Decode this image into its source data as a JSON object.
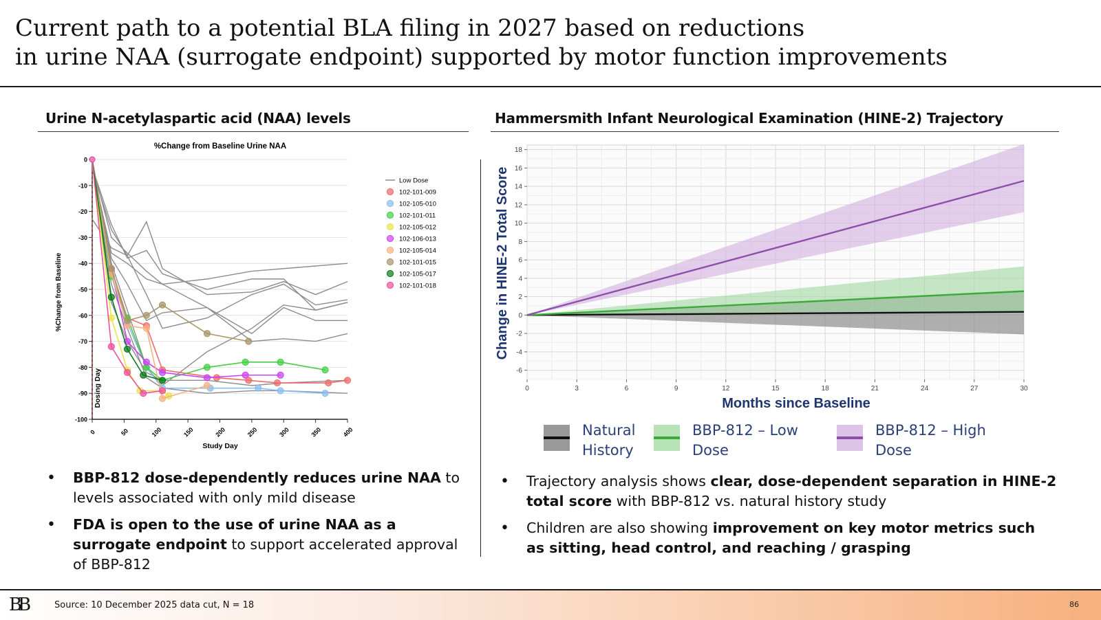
{
  "title": {
    "line1": "Current path to a potential BLA filing in 2027 based on reductions",
    "line2": "in urine NAA (surrogate endpoint) supported by motor function improvements"
  },
  "left": {
    "heading": "Urine N-acetylaspartic acid (NAA) levels",
    "bullets": [
      {
        "bold": "BBP-812 dose-dependently reduces urine NAA",
        "rest": " to levels associated with only mild disease"
      },
      {
        "bold": "FDA is open to the use of urine NAA as a surrogate endpoint",
        "rest": " to support accelerated approval of BBP-812"
      }
    ]
  },
  "right": {
    "heading": "Hammersmith Infant Neurological Examination (HINE-2) Trajectory",
    "bullets": [
      {
        "pre": "Trajectory analysis shows ",
        "bold": "clear, dose-dependent separation in HINE-2 total score",
        "rest": " with BBP-812 vs. natural history study"
      },
      {
        "pre": "Children are also showing ",
        "bold": "improvement on key motor metrics such as sitting, head control, and reaching / grasping",
        "rest": ""
      }
    ]
  },
  "footer": {
    "logo": "BB",
    "source": "Source: 10 December 2025 data cut, N = 18",
    "page": "86"
  },
  "chart_data": [
    {
      "type": "line",
      "title": "%Change from Baseline Urine NAA",
      "xlabel": "Study Day",
      "ylabel": "%Change from Baseline",
      "xlim": [
        0,
        400
      ],
      "ylim": [
        -100,
        0
      ],
      "xticks": [
        0,
        50,
        100,
        150,
        200,
        250,
        300,
        350,
        400
      ],
      "yticks": [
        0,
        -10,
        -20,
        -30,
        -40,
        -50,
        -60,
        -70,
        -80,
        -90,
        -100
      ],
      "annotation": "Dosing Day",
      "grid": "horizontal",
      "legend_position": "top-right",
      "low_dose_label": "Low Dose",
      "low_dose_color": "#8c8c8c",
      "low_dose_lines": [
        [
          [
            0,
            -23
          ],
          [
            30,
            -34
          ],
          [
            55,
            -37
          ],
          [
            85,
            -52
          ],
          [
            110,
            -65
          ],
          [
            180,
            -61
          ],
          [
            250,
            -52
          ],
          [
            300,
            -48
          ],
          [
            350,
            -56
          ],
          [
            400,
            -54
          ]
        ],
        [
          [
            0,
            -2
          ],
          [
            30,
            -30
          ],
          [
            55,
            -36
          ],
          [
            85,
            -43
          ],
          [
            110,
            -48
          ],
          [
            180,
            -46
          ],
          [
            250,
            -43
          ],
          [
            300,
            -42
          ],
          [
            400,
            -40
          ]
        ],
        [
          [
            0,
            -4
          ],
          [
            30,
            -27
          ],
          [
            55,
            -37
          ],
          [
            85,
            -24
          ],
          [
            110,
            -42
          ],
          [
            180,
            -52
          ],
          [
            250,
            -51
          ],
          [
            300,
            -47
          ],
          [
            350,
            -52
          ],
          [
            400,
            -47
          ]
        ],
        [
          [
            0,
            -3
          ],
          [
            30,
            -25
          ],
          [
            55,
            -38
          ],
          [
            85,
            -35
          ],
          [
            110,
            -44
          ],
          [
            180,
            -50
          ],
          [
            250,
            -46
          ],
          [
            300,
            -46
          ],
          [
            350,
            -58
          ],
          [
            400,
            -55
          ]
        ],
        [
          [
            0,
            -3
          ],
          [
            30,
            -38
          ],
          [
            55,
            -48
          ],
          [
            85,
            -62
          ],
          [
            110,
            -59
          ],
          [
            180,
            -57
          ],
          [
            250,
            -67
          ],
          [
            300,
            -57
          ],
          [
            350,
            -62
          ],
          [
            400,
            -62
          ]
        ],
        [
          [
            0,
            -3
          ],
          [
            30,
            -36
          ],
          [
            55,
            -40
          ],
          [
            85,
            -46
          ],
          [
            110,
            -48
          ],
          [
            180,
            -57
          ],
          [
            250,
            -70
          ],
          [
            300,
            -69
          ],
          [
            350,
            -70
          ],
          [
            400,
            -67
          ]
        ],
        [
          [
            0,
            -2
          ],
          [
            30,
            -40
          ],
          [
            55,
            -58
          ],
          [
            85,
            -80
          ],
          [
            110,
            -87
          ],
          [
            180,
            -74
          ],
          [
            250,
            -65
          ],
          [
            300,
            -56
          ],
          [
            350,
            -58
          ],
          [
            400,
            -55
          ]
        ],
        [
          [
            0,
            -2
          ],
          [
            30,
            -48
          ],
          [
            55,
            -65
          ],
          [
            85,
            -84
          ],
          [
            110,
            -88
          ],
          [
            180,
            -90
          ],
          [
            250,
            -89
          ],
          [
            300,
            -89
          ],
          [
            400,
            -90
          ]
        ],
        [
          [
            0,
            -1
          ],
          [
            30,
            -55
          ],
          [
            55,
            -70
          ],
          [
            85,
            -82
          ],
          [
            110,
            -85
          ],
          [
            180,
            -85
          ],
          [
            250,
            -87
          ],
          [
            300,
            -86
          ],
          [
            400,
            -85
          ]
        ]
      ],
      "series": [
        {
          "name": "102-101-009",
          "color": "#f06a6a",
          "points": [
            [
              0,
              0
            ],
            [
              30,
              -42
            ],
            [
              55,
              -61
            ],
            [
              85,
              -64
            ],
            [
              110,
              -81
            ],
            [
              195,
              -84
            ],
            [
              245,
              -85
            ],
            [
              290,
              -86
            ],
            [
              370,
              -86
            ],
            [
              400,
              -85
            ]
          ]
        },
        {
          "name": "102-105-010",
          "color": "#8bbcf0",
          "points": [
            [
              0,
              0
            ],
            [
              30,
              -44
            ],
            [
              55,
              -63
            ],
            [
              85,
              -80
            ],
            [
              110,
              -88
            ],
            [
              185,
              -88
            ],
            [
              260,
              -88
            ],
            [
              295,
              -89
            ],
            [
              365,
              -90
            ]
          ]
        },
        {
          "name": "102-101-011",
          "color": "#42d042",
          "points": [
            [
              0,
              0
            ],
            [
              30,
              -45
            ],
            [
              55,
              -61
            ],
            [
              85,
              -80
            ],
            [
              110,
              -85
            ],
            [
              180,
              -80
            ],
            [
              240,
              -78
            ],
            [
              295,
              -78
            ],
            [
              365,
              -81
            ]
          ]
        },
        {
          "name": "102-105-012",
          "color": "#e6e64a",
          "points": [
            [
              0,
              0
            ],
            [
              30,
              -61
            ],
            [
              55,
              -81
            ],
            [
              75,
              -89
            ],
            [
              110,
              -89
            ],
            [
              120,
              -91
            ]
          ]
        },
        {
          "name": "102-106-013",
          "color": "#cc44ee",
          "points": [
            [
              0,
              0
            ],
            [
              30,
              -43
            ],
            [
              55,
              -70
            ],
            [
              85,
              -78
            ],
            [
              110,
              -82
            ],
            [
              180,
              -84
            ],
            [
              240,
              -83
            ],
            [
              295,
              -83
            ]
          ]
        },
        {
          "name": "102-105-014",
          "color": "#f6b280",
          "points": [
            [
              0,
              0
            ],
            [
              30,
              -44
            ],
            [
              55,
              -64
            ],
            [
              85,
              -65
            ],
            [
              110,
              -92
            ],
            [
              180,
              -87
            ]
          ]
        },
        {
          "name": "102-101-015",
          "color": "#a8966a",
          "points": [
            [
              0,
              0
            ],
            [
              30,
              -42
            ],
            [
              55,
              -62
            ],
            [
              85,
              -60
            ],
            [
              110,
              -56
            ],
            [
              180,
              -67
            ],
            [
              245,
              -70
            ]
          ]
        },
        {
          "name": "102-105-017",
          "color": "#0a7a1a",
          "points": [
            [
              0,
              0
            ],
            [
              30,
              -53
            ],
            [
              55,
              -73
            ],
            [
              80,
              -83
            ],
            [
              110,
              -85
            ]
          ]
        },
        {
          "name": "102-101-018",
          "color": "#f0509a",
          "points": [
            [
              0,
              0
            ],
            [
              30,
              -72
            ],
            [
              55,
              -82
            ],
            [
              80,
              -90
            ],
            [
              110,
              -89
            ]
          ]
        }
      ]
    },
    {
      "type": "area",
      "ylabel": "Change in HINE-2 Total Score",
      "xlabel": "Months since Baseline",
      "xlim": [
        0,
        30
      ],
      "ylim": [
        -7,
        18.5
      ],
      "xticks": [
        0,
        3,
        6,
        9,
        12,
        15,
        18,
        21,
        24,
        27,
        30
      ],
      "yticks": [
        -6,
        -4,
        -2,
        0,
        2,
        4,
        6,
        8,
        10,
        12,
        14,
        16,
        18
      ],
      "grid": "on",
      "legend_position": "bottom",
      "series": [
        {
          "name": "Natural History",
          "line_color": "#111111",
          "band_color": "#7f7f7f",
          "mean_end": 0.35,
          "band_end": [
            -2.1,
            2.6
          ]
        },
        {
          "name": "BBP-812 – Low Dose",
          "line_color": "#3aaa3a",
          "band_color": "#a3d9a3",
          "mean_end": 2.6,
          "band_end": [
            0.2,
            5.3
          ]
        },
        {
          "name": "BBP-812 – High Dose",
          "line_color": "#8e4fa8",
          "band_color": "#d2b2e0",
          "mean_end": 14.6,
          "band_end": [
            11.2,
            18.6
          ]
        }
      ],
      "legend_labels": [
        [
          "Natural",
          "History"
        ],
        [
          "BBP-812 – Low",
          "Dose"
        ],
        [
          "BBP-812 – High",
          "Dose"
        ]
      ]
    }
  ]
}
